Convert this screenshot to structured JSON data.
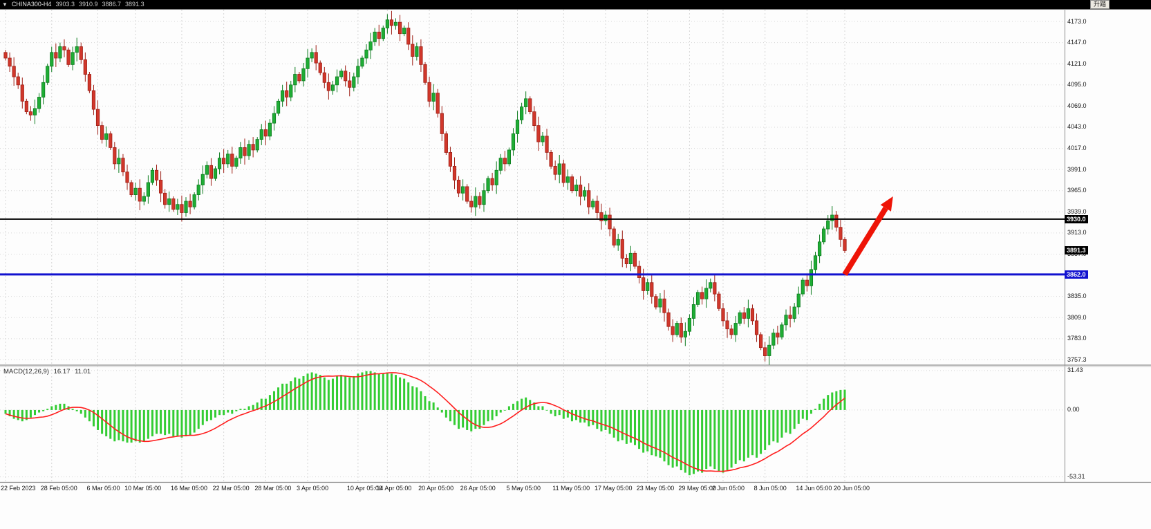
{
  "title_bar": {
    "dropdown_glyph": "▼",
    "symbol": "CHINA300-H4",
    "open": "3903.3",
    "high": "3910.9",
    "low": "3886.7",
    "close": "3891.3"
  },
  "corner_note": "升踏",
  "colors": {
    "bull_fill": "#1fad35",
    "bull_border": "#0d7c1f",
    "bear_fill": "#d1372b",
    "bear_border": "#9e1f16",
    "grid": "#d6d6d6",
    "macd_hist": "#33cc33",
    "macd_signal": "#ff1e1e",
    "arrow": "#ee1407",
    "axis_border": "#8a8a8a"
  },
  "chart_data": [
    {
      "type": "candlestick",
      "symbol": "CHINA300-H4",
      "timeframe": "H4",
      "ylim": [
        3751.4,
        4187.5
      ],
      "first_open": 4135,
      "closes": [
        4128,
        4118,
        4105,
        4095,
        4075,
        4062,
        4058,
        4066,
        4080,
        4098,
        4118,
        4135,
        4128,
        4142,
        4138,
        4120,
        4135,
        4142,
        4126,
        4108,
        4088,
        4065,
        4045,
        4028,
        4035,
        4018,
        3998,
        4005,
        3988,
        3975,
        3960,
        3968,
        3952,
        3958,
        3975,
        3990,
        3978,
        3962,
        3948,
        3955,
        3942,
        3948,
        3938,
        3952,
        3945,
        3960,
        3972,
        3985,
        3996,
        3980,
        3992,
        4005,
        3998,
        4010,
        3995,
        4005,
        4018,
        4008,
        4022,
        4015,
        4028,
        4040,
        4032,
        4048,
        4060,
        4075,
        4088,
        4080,
        4095,
        4108,
        4100,
        4115,
        4128,
        4135,
        4122,
        4110,
        4098,
        4088,
        4095,
        4105,
        4112,
        4100,
        4092,
        4105,
        4118,
        4128,
        4138,
        4148,
        4160,
        4152,
        4165,
        4175,
        4168,
        4172,
        4158,
        4165,
        4145,
        4130,
        4142,
        4120,
        4098,
        4075,
        4085,
        4060,
        4035,
        4012,
        3995,
        3978,
        3962,
        3970,
        3952,
        3945,
        3958,
        3948,
        3965,
        3980,
        3972,
        3990,
        4005,
        3998,
        4015,
        4035,
        4052,
        4068,
        4078,
        4062,
        4045,
        4025,
        4032,
        4012,
        3995,
        3985,
        3998,
        3975,
        3982,
        3965,
        3972,
        3958,
        3965,
        3945,
        3952,
        3938,
        3928,
        3935,
        3918,
        3898,
        3905,
        3882,
        3875,
        3888,
        3872,
        3858,
        3842,
        3852,
        3835,
        3822,
        3832,
        3815,
        3798,
        3788,
        3802,
        3785,
        3792,
        3808,
        3825,
        3840,
        3832,
        3845,
        3852,
        3838,
        3820,
        3805,
        3795,
        3788,
        3802,
        3815,
        3808,
        3820,
        3805,
        3788,
        3772,
        3762,
        3775,
        3790,
        3785,
        3800,
        3812,
        3808,
        3822,
        3838,
        3855,
        3848,
        3868,
        3885,
        3902,
        3918,
        3928,
        3935,
        3920,
        3905,
        3891.3
      ],
      "yticks": [
        {
          "value": 4173.0,
          "label": "4173.0"
        },
        {
          "value": 4147.0,
          "label": "4147.0"
        },
        {
          "value": 4121.0,
          "label": "4121.0"
        },
        {
          "value": 4095.0,
          "label": "4095.0"
        },
        {
          "value": 4069.0,
          "label": "4069.0"
        },
        {
          "value": 4043.0,
          "label": "4043.0"
        },
        {
          "value": 4017.0,
          "label": "4017.0"
        },
        {
          "value": 3991.0,
          "label": "3991.0"
        },
        {
          "value": 3965.0,
          "label": "3965.0"
        },
        {
          "value": 3939.0,
          "label": "3939.0"
        },
        {
          "value": 3913.0,
          "label": "3913.0"
        },
        {
          "value": 3887.0,
          "label": "3887.0"
        },
        {
          "value": 3835.0,
          "label": "3835.0"
        },
        {
          "value": 3809.0,
          "label": "3809.0"
        },
        {
          "value": 3783.0,
          "label": "3783.0"
        },
        {
          "value": 3757.3,
          "label": "3757.3"
        }
      ],
      "levels": [
        {
          "value": 3930.0,
          "label": "3930.0",
          "color": "#000000",
          "line": true,
          "line_width": 2
        },
        {
          "value": 3891.3,
          "label": "3891.3",
          "color": "#000000",
          "line": false,
          "line_width": 0
        },
        {
          "value": 3862.0,
          "label": "3862.0",
          "color": "#1212cf",
          "line": true,
          "line_width": 3
        }
      ],
      "x_labels": [
        {
          "bar": 0,
          "text": "22 Feb 2023"
        },
        {
          "bar": 11,
          "text": "28 Feb 05:00"
        },
        {
          "bar": 22,
          "text": "6 Mar 05:00"
        },
        {
          "bar": 31,
          "text": "10 Mar 05:00"
        },
        {
          "bar": 42,
          "text": "16 Mar 05:00"
        },
        {
          "bar": 52,
          "text": "22 Mar 05:00"
        },
        {
          "bar": 62,
          "text": "28 Mar 05:00"
        },
        {
          "bar": 72,
          "text": "3 Apr 05:00"
        },
        {
          "bar": 84,
          "text": "10 Apr 05:00"
        },
        {
          "bar": 91,
          "text": "14 Apr 05:00"
        },
        {
          "bar": 101,
          "text": "20 Apr 05:00"
        },
        {
          "bar": 111,
          "text": "26 Apr 05:00"
        },
        {
          "bar": 122,
          "text": "5 May 05:00"
        },
        {
          "bar": 133,
          "text": "11 May 05:00"
        },
        {
          "bar": 143,
          "text": "17 May 05:00"
        },
        {
          "bar": 153,
          "text": "23 May 05:00"
        },
        {
          "bar": 163,
          "text": "29 May 05:00"
        },
        {
          "bar": 171,
          "text": "2 Jun 05:00"
        },
        {
          "bar": 181,
          "text": "8 Jun 05:00"
        },
        {
          "bar": 191,
          "text": "14 Jun 05:00"
        },
        {
          "bar": 200,
          "text": "20 Jun 05:00"
        }
      ],
      "arrow": {
        "from_bar": 200,
        "from_price": 3862,
        "to_bar": 211.5,
        "to_price": 3958,
        "color": "#ee1407"
      }
    },
    {
      "type": "macd",
      "label": "MACD(12,26,9)",
      "value_main": "16.17",
      "value_signal": "11.01",
      "signal_period": 9,
      "ylim": [
        -57.4,
        34.7
      ],
      "yticks": [
        {
          "value": 31.43,
          "label": "31.43"
        },
        {
          "value": 0,
          "label": "0.00"
        },
        {
          "value": -53.31,
          "label": "-53.31"
        }
      ],
      "hist": [
        -3,
        -5,
        -7,
        -8,
        -9,
        -8,
        -6,
        -4,
        -2,
        -1,
        1,
        3,
        4,
        5,
        5,
        3,
        1,
        -1,
        -3,
        -6,
        -9,
        -13,
        -16,
        -19,
        -21,
        -23,
        -25,
        -24,
        -25,
        -26,
        -26,
        -25,
        -26,
        -25,
        -23,
        -21,
        -19,
        -19,
        -20,
        -19,
        -21,
        -21,
        -22,
        -21,
        -20,
        -18,
        -15,
        -12,
        -9,
        -8,
        -6,
        -4,
        -4,
        -2,
        -3,
        -1,
        1,
        1,
        3,
        4,
        6,
        9,
        9,
        12,
        15,
        18,
        21,
        21,
        23,
        26,
        25,
        27,
        29,
        30,
        29,
        28,
        26,
        24,
        25,
        27,
        28,
        27,
        26,
        27,
        29,
        30,
        31,
        31,
        30,
        29,
        29,
        30,
        29,
        28,
        26,
        25,
        22,
        19,
        18,
        15,
        11,
        7,
        6,
        2,
        -2,
        -6,
        -9,
        -12,
        -15,
        -14,
        -16,
        -17,
        -15,
        -15,
        -12,
        -9,
        -8,
        -5,
        -2,
        0,
        3,
        5,
        7,
        9,
        10,
        8,
        6,
        3,
        3,
        0,
        -3,
        -5,
        -4,
        -7,
        -6,
        -9,
        -8,
        -10,
        -10,
        -13,
        -12,
        -15,
        -17,
        -16,
        -19,
        -22,
        -25,
        -24,
        -27,
        -26,
        -28,
        -31,
        -34,
        -33,
        -36,
        -37,
        -38,
        -41,
        -44,
        -46,
        -45,
        -48,
        -50,
        -52,
        -51,
        -49,
        -50,
        -47,
        -45,
        -47,
        -49,
        -50,
        -48,
        -46,
        -43,
        -40,
        -41,
        -38,
        -36,
        -38,
        -35,
        -32,
        -28,
        -25,
        -26,
        -22,
        -18,
        -19,
        -15,
        -11,
        -7,
        -8,
        -3,
        1,
        5,
        9,
        12,
        14,
        15,
        16,
        16.2
      ]
    }
  ]
}
